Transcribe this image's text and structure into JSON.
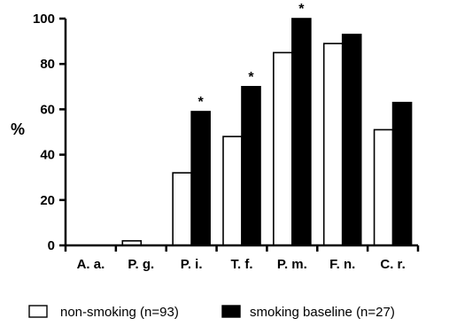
{
  "chart_data": {
    "type": "bar",
    "categories": [
      "A. a.",
      "P. g.",
      "P. i.",
      "T. f.",
      "P. m.",
      "F. n.",
      "C. r."
    ],
    "series": [
      {
        "name": "non-smoking (n=93)",
        "values": [
          0,
          2,
          32,
          48,
          85,
          89,
          51
        ],
        "color": "#ffffff"
      },
      {
        "name": "smoking baseline (n=27)",
        "values": [
          0,
          0,
          59,
          70,
          100,
          93,
          63
        ],
        "color": "#000000"
      }
    ],
    "significance_marker": "*",
    "significant_categories": [
      "P. i.",
      "T. f.",
      "P. m."
    ],
    "ylabel": "%",
    "xlabel": "",
    "title": "",
    "ylim": [
      0,
      100
    ],
    "yticks": [
      0,
      20,
      40,
      60,
      80,
      100
    ],
    "grid": false,
    "legend_position": "bottom"
  }
}
